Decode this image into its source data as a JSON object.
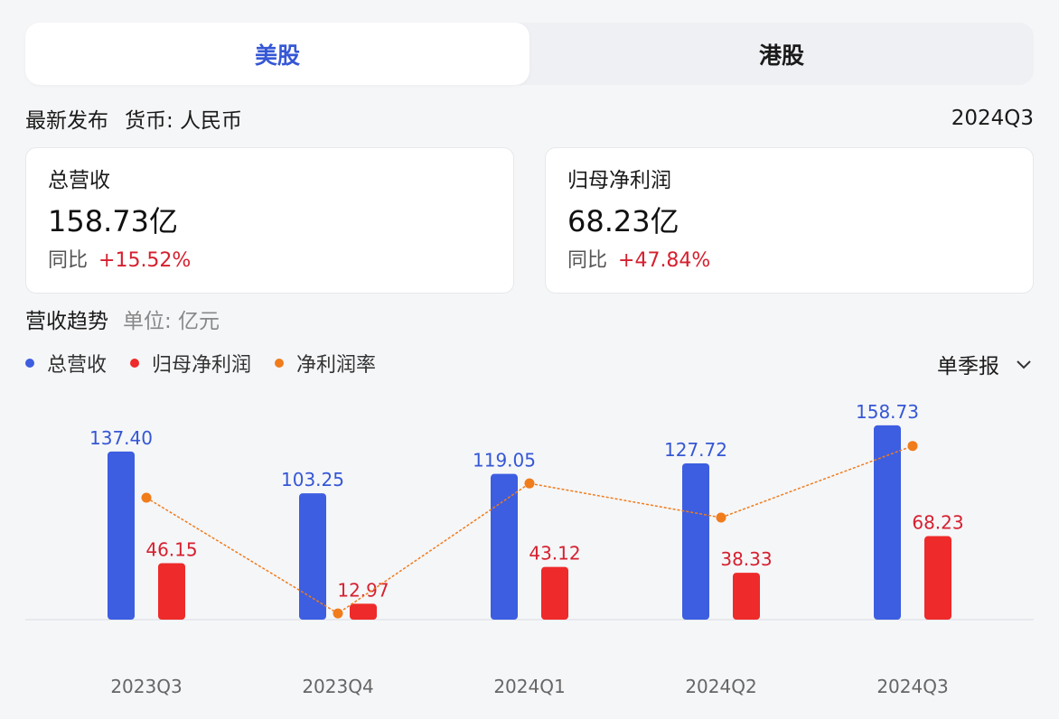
{
  "tabs": [
    {
      "label": "美股",
      "active": true
    },
    {
      "label": "港股",
      "active": false
    }
  ],
  "info": {
    "label": "最新发布",
    "currency": "货币: 人民币",
    "period": "2024Q3"
  },
  "cards": [
    {
      "title": "总营收",
      "value": "158.73亿",
      "yoy_label": "同比",
      "yoy_value": "+15.52%"
    },
    {
      "title": "归母净利润",
      "value": "68.23亿",
      "yoy_label": "同比",
      "yoy_value": "+47.84%"
    }
  ],
  "trend": {
    "title": "营收趋势",
    "unit": "单位: 亿元",
    "period_select": "单季报"
  },
  "colors": {
    "accent": "#3557d5",
    "revenue": "#3d5ee1",
    "net_profit": "#ee2a2a",
    "margin": "#f07c1c",
    "positive": "#d6202f"
  },
  "chart_data": {
    "type": "bar",
    "categories": [
      "2023Q3",
      "2023Q4",
      "2024Q1",
      "2024Q2",
      "2024Q3"
    ],
    "series": [
      {
        "name": "总营收",
        "type": "bar",
        "values": [
          137.4,
          103.25,
          119.05,
          127.72,
          158.73
        ],
        "labels": [
          "137.40",
          "103.25",
          "119.05",
          "127.72",
          "158.73"
        ]
      },
      {
        "name": "归母净利润",
        "type": "bar",
        "values": [
          46.15,
          12.97,
          43.12,
          38.33,
          68.23
        ],
        "labels": [
          "46.15",
          "12.97",
          "43.12",
          "38.33",
          "68.23"
        ]
      },
      {
        "name": "净利润率",
        "type": "line",
        "values": [
          33.6,
          12.6,
          36.2,
          30.0,
          43.0
        ]
      }
    ],
    "ylim": [
      0,
      160
    ],
    "legend_position": "top-left",
    "grid": false
  }
}
